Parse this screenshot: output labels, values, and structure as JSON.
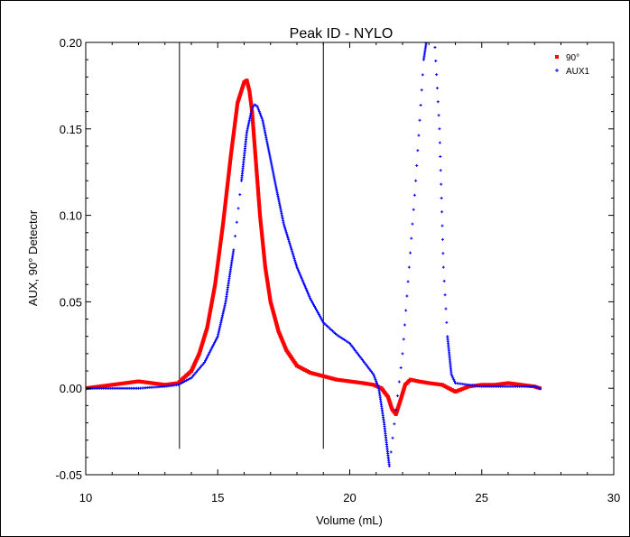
{
  "chart_data": {
    "type": "scatter",
    "title": "Peak ID - NYLO",
    "xlabel": "Volume (mL)",
    "ylabel": "AUX, 90° Detector",
    "xlim": [
      10,
      30
    ],
    "ylim": [
      -0.05,
      0.2
    ],
    "x_ticks": [
      "10",
      "15",
      "20",
      "25",
      "30"
    ],
    "y_ticks": [
      "-0.05",
      "0.00",
      "0.05",
      "0.10",
      "0.15",
      "0.20"
    ],
    "legend_position": "top-right",
    "grid": false,
    "vertical_markers": [
      13.55,
      19.0
    ],
    "series": [
      {
        "name": "90°",
        "color": "#ff0000",
        "marker": "square",
        "x": [
          10.0,
          10.5,
          11.0,
          11.5,
          12.0,
          12.5,
          13.0,
          13.5,
          14.0,
          14.3,
          14.6,
          14.9,
          15.2,
          15.5,
          15.75,
          16.0,
          16.1,
          16.2,
          16.3,
          16.45,
          16.6,
          16.8,
          17.0,
          17.3,
          17.6,
          18.0,
          18.5,
          19.0,
          19.5,
          20.0,
          20.5,
          20.9,
          21.2,
          21.45,
          21.6,
          21.75,
          21.9,
          22.1,
          22.3,
          22.6,
          23.0,
          23.5,
          24.0,
          24.5,
          25.0,
          25.5,
          26.0,
          26.5,
          27.0,
          27.2
        ],
        "y": [
          0.0,
          0.001,
          0.002,
          0.003,
          0.004,
          0.003,
          0.002,
          0.003,
          0.01,
          0.02,
          0.035,
          0.06,
          0.095,
          0.135,
          0.165,
          0.177,
          0.178,
          0.172,
          0.16,
          0.13,
          0.1,
          0.07,
          0.05,
          0.033,
          0.022,
          0.013,
          0.009,
          0.007,
          0.005,
          0.004,
          0.003,
          0.002,
          0.0,
          -0.005,
          -0.012,
          -0.015,
          -0.008,
          0.002,
          0.005,
          0.004,
          0.003,
          0.002,
          -0.002,
          0.001,
          0.002,
          0.002,
          0.003,
          0.002,
          0.001,
          0.0
        ]
      },
      {
        "name": "AUX1",
        "color": "#0000ff",
        "marker": "plus",
        "x": [
          10.0,
          11.0,
          12.0,
          13.0,
          13.5,
          14.0,
          14.5,
          15.0,
          15.3,
          15.6,
          15.9,
          16.1,
          16.3,
          16.4,
          16.5,
          16.7,
          16.9,
          17.2,
          17.5,
          18.0,
          18.5,
          19.0,
          19.5,
          19.8,
          20.0,
          20.3,
          20.6,
          20.9,
          21.1,
          21.3,
          21.5,
          22.0,
          22.5,
          22.8,
          23.0,
          23.2,
          23.4,
          23.55,
          23.7,
          23.85,
          24.0,
          24.5,
          25.0,
          25.5,
          26.0,
          26.5,
          27.0,
          27.2
        ],
        "y": [
          0.0,
          0.0,
          0.0,
          0.001,
          0.002,
          0.006,
          0.015,
          0.03,
          0.05,
          0.08,
          0.12,
          0.148,
          0.162,
          0.164,
          0.163,
          0.155,
          0.14,
          0.117,
          0.095,
          0.07,
          0.052,
          0.038,
          0.031,
          0.028,
          0.026,
          0.02,
          0.014,
          0.008,
          0.0,
          -0.02,
          -0.045,
          0.02,
          0.12,
          0.19,
          0.21,
          0.205,
          0.15,
          0.07,
          0.03,
          0.008,
          0.003,
          0.002,
          0.001,
          0.001,
          0.001,
          0.001,
          0.001,
          0.0
        ]
      }
    ]
  }
}
